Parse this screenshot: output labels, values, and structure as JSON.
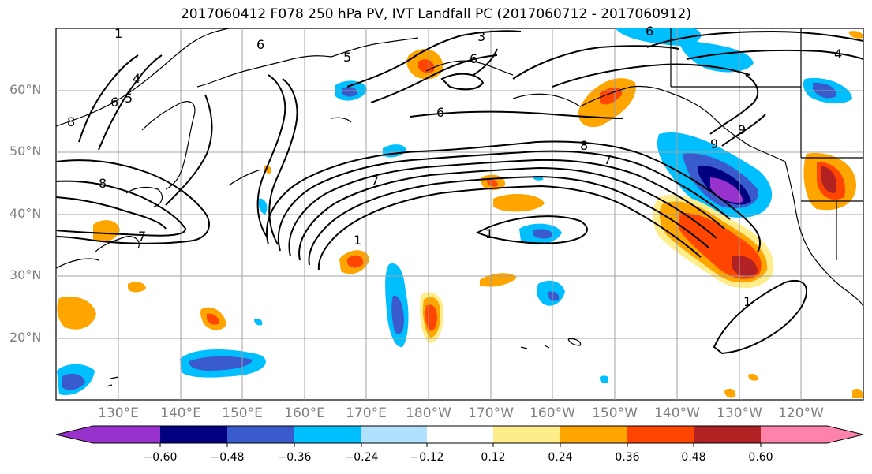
{
  "title": "2017060412 F078 250 hPa PV, IVT Landfall PC (2017060712 - 2017060912)",
  "lat_labels": [
    "60°N",
    "50°N",
    "40°N",
    "30°N",
    "20°N"
  ],
  "lon_labels": [
    "130°E",
    "140°E",
    "150°E",
    "160°E",
    "170°E",
    "180°W",
    "170°W",
    "160°W",
    "150°W",
    "140°W",
    "130°W",
    "120°W"
  ],
  "colorbar": {
    "ticks": [
      "−0.60",
      "−0.48",
      "−0.36",
      "−0.24",
      "−0.12",
      "0.12",
      "0.24",
      "0.36",
      "0.48",
      "0.60"
    ],
    "colors": [
      "#9932CC",
      "#000080",
      "#3A5BCD",
      "#00BFFF",
      "#B0E2FF",
      "#FFFFFF",
      "#FFEC8B",
      "#FFA500",
      "#FF4500",
      "#B22222",
      "#FF82AB"
    ]
  },
  "contour_labels": [
    "3",
    "4",
    "5",
    "6",
    "6",
    "8",
    "9",
    "7",
    "1",
    "1",
    "6",
    "8",
    "4",
    "8",
    "6",
    "7",
    "7",
    "6",
    "9",
    "1",
    "1",
    "5"
  ],
  "map": {
    "projection": "equirectangular",
    "lon_range": [
      120,
      250
    ],
    "lat_range": [
      10,
      70
    ],
    "gridlines": true,
    "field": "250 hPa PV contours with IVT landfall PC shading"
  }
}
